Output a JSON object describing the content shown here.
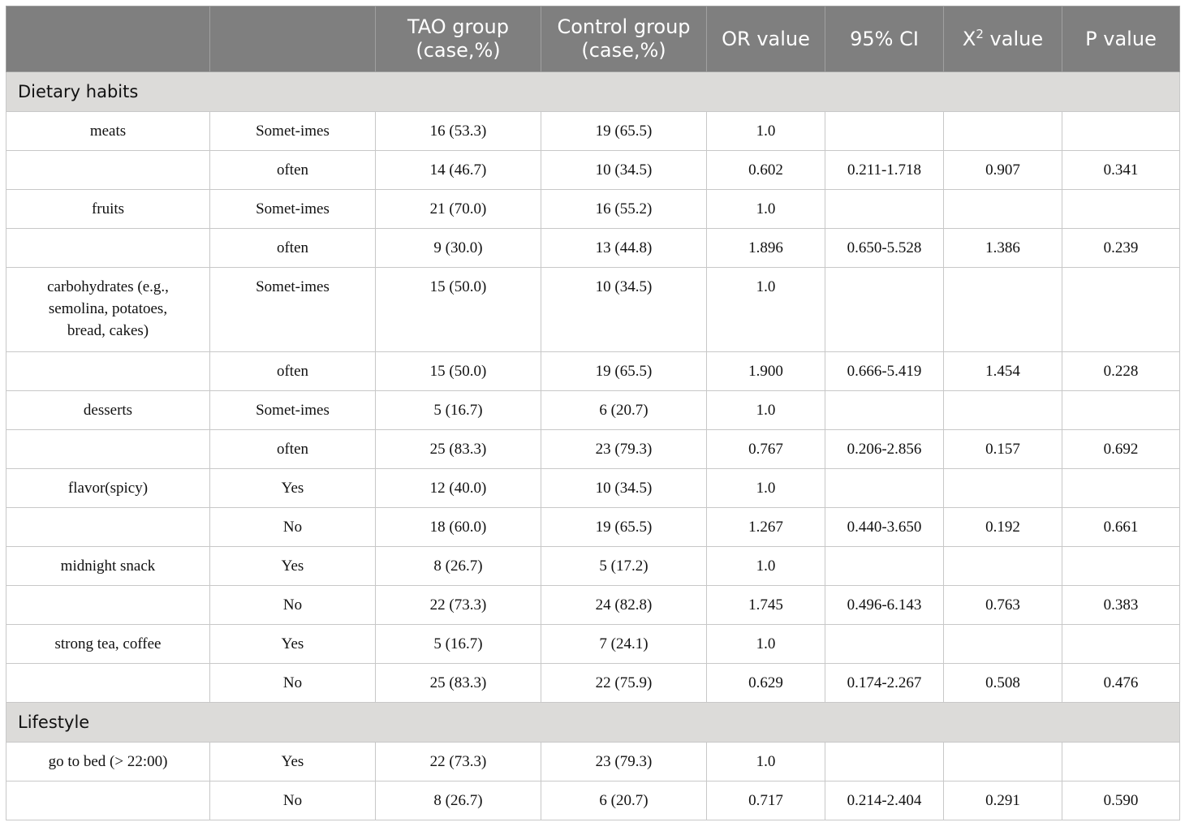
{
  "headers": [
    "",
    "",
    "TAO group (case,%)",
    "Control group (case,%)",
    "OR value",
    "95% CI",
    "value",
    "P value"
  ],
  "x2_header": {
    "base": "X",
    "sup": "2",
    "rest": " value"
  },
  "sections": [
    {
      "title": "Dietary habits",
      "rows": [
        [
          "meats",
          "Somet-imes",
          "16 (53.3)",
          "19 (65.5)",
          "1.0",
          "",
          "",
          ""
        ],
        [
          "",
          "often",
          "14 (46.7)",
          "10 (34.5)",
          "0.602",
          "0.211-1.718",
          "0.907",
          "0.341"
        ],
        [
          "fruits",
          "Somet-imes",
          "21 (70.0)",
          "16 (55.2)",
          "1.0",
          "",
          "",
          ""
        ],
        [
          "",
          "often",
          "9 (30.0)",
          "13 (44.8)",
          "1.896",
          "0.650-5.528",
          "1.386",
          "0.239"
        ],
        [
          "carbohydrates (e.g., semolina, potatoes, bread, cakes)",
          "Somet-imes",
          "15 (50.0)",
          "10 (34.5)",
          "1.0",
          "",
          "",
          ""
        ],
        [
          "",
          "often",
          "15 (50.0)",
          "19 (65.5)",
          "1.900",
          "0.666-5.419",
          "1.454",
          "0.228"
        ],
        [
          "desserts",
          "Somet-imes",
          "5 (16.7)",
          "6 (20.7)",
          "1.0",
          "",
          "",
          ""
        ],
        [
          "",
          "often",
          "25 (83.3)",
          "23 (79.3)",
          "0.767",
          "0.206-2.856",
          "0.157",
          "0.692"
        ],
        [
          "flavor(spicy)",
          "Yes",
          "12 (40.0)",
          "10 (34.5)",
          "1.0",
          "",
          "",
          ""
        ],
        [
          "",
          "No",
          "18 (60.0)",
          "19 (65.5)",
          "1.267",
          "0.440-3.650",
          "0.192",
          "0.661"
        ],
        [
          "midnight snack",
          "Yes",
          "8 (26.7)",
          "5 (17.2)",
          "1.0",
          "",
          "",
          ""
        ],
        [
          "",
          "No",
          "22 (73.3)",
          "24 (82.8)",
          "1.745",
          "0.496-6.143",
          "0.763",
          "0.383"
        ],
        [
          "strong tea, coffee",
          "Yes",
          "5 (16.7)",
          "7 (24.1)",
          "1.0",
          "",
          "",
          ""
        ],
        [
          "",
          "No",
          "25 (83.3)",
          "22 (75.9)",
          "0.629",
          "0.174-2.267",
          "0.508",
          "0.476"
        ]
      ]
    },
    {
      "title": "Lifestyle",
      "rows": [
        [
          "go to bed (> 22:00)",
          "Yes",
          "22 (73.3)",
          "23 (79.3)",
          "1.0",
          "",
          "",
          ""
        ],
        [
          "",
          "No",
          "8 (26.7)",
          "6 (20.7)",
          "0.717",
          "0.214-2.404",
          "0.291",
          "0.590"
        ]
      ]
    }
  ]
}
